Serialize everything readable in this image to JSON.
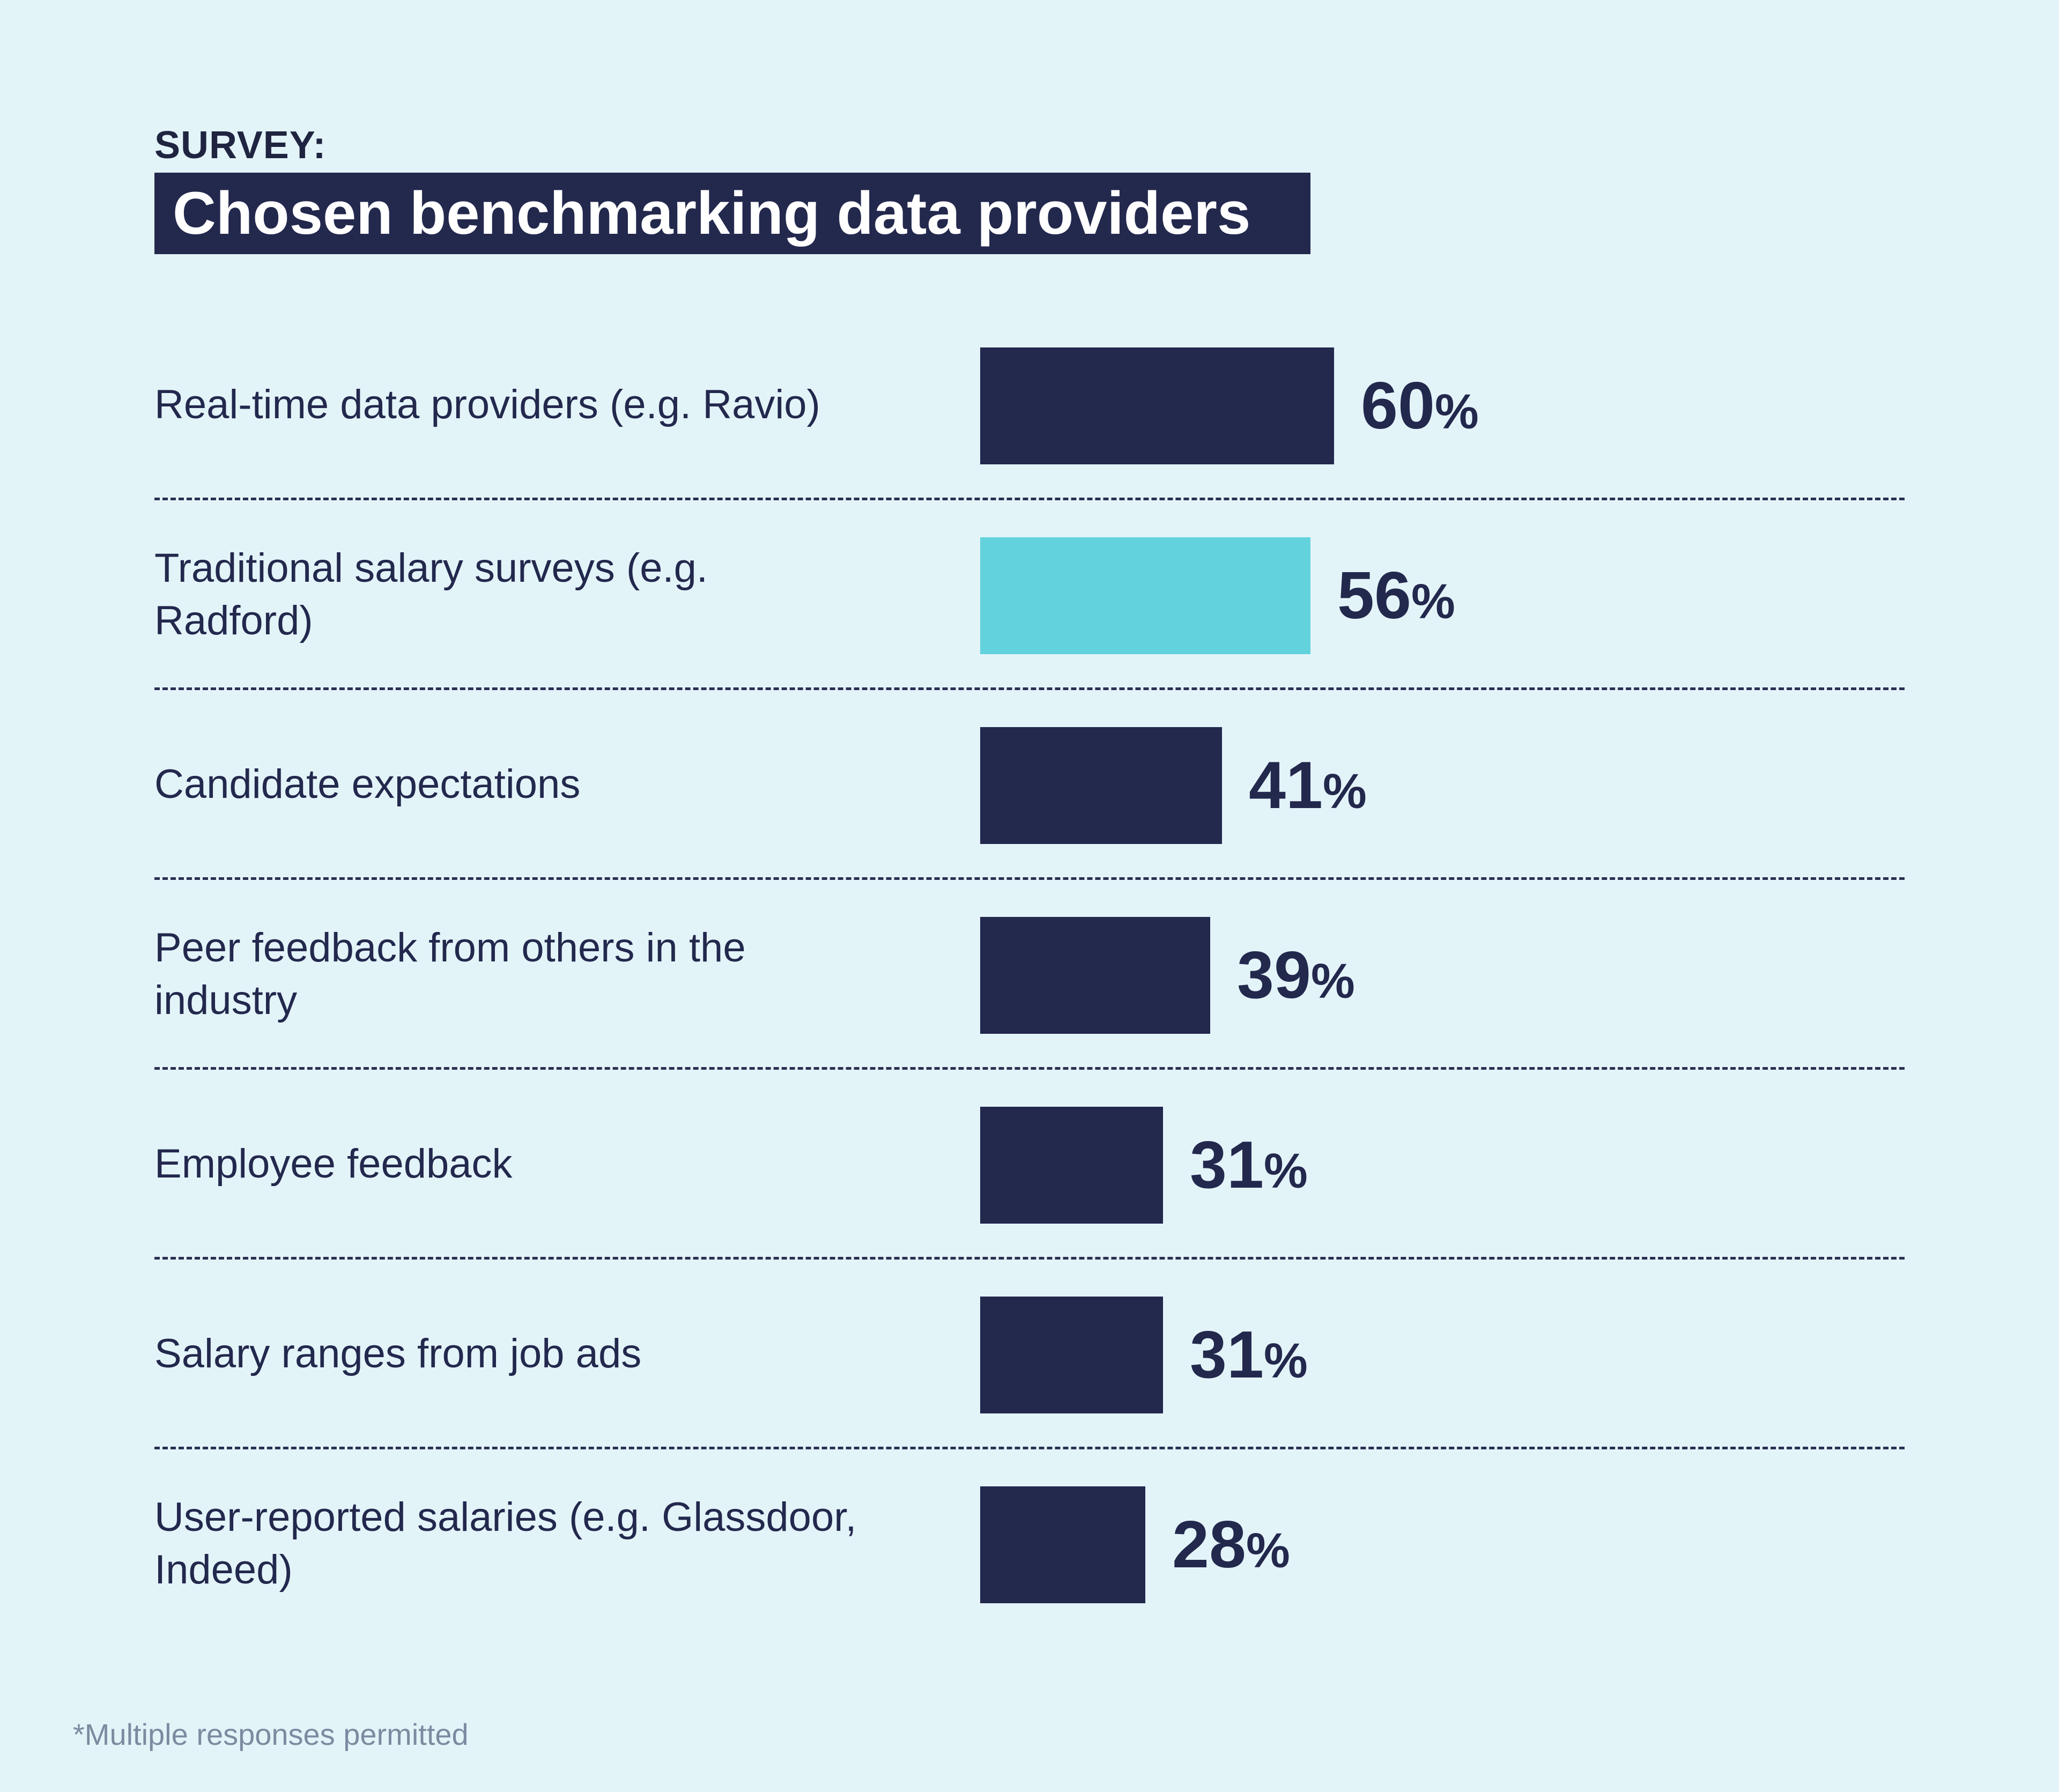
{
  "header": {
    "kicker": "SURVEY:",
    "title": "Chosen benchmarking data providers"
  },
  "chart_data": {
    "type": "bar",
    "orientation": "horizontal",
    "categories": [
      "Real-time data providers (e.g. Ravio)",
      "Traditional salary surveys (e.g. Radford)",
      "Candidate expectations",
      "Peer feedback from others in the industry",
      "Employee feedback",
      "Salary ranges from job ads",
      "User-reported salaries (e.g. Glassdoor, Indeed)"
    ],
    "values": [
      60,
      56,
      41,
      39,
      31,
      31,
      28
    ],
    "value_suffix": "%",
    "xlim": [
      0,
      100
    ],
    "grid": false,
    "highlight_index": 1,
    "colors": {
      "bar": "#23284d",
      "highlight": "#62d3dc",
      "background": "#e3f4f9"
    }
  },
  "footnote": "*Multiple responses permitted"
}
